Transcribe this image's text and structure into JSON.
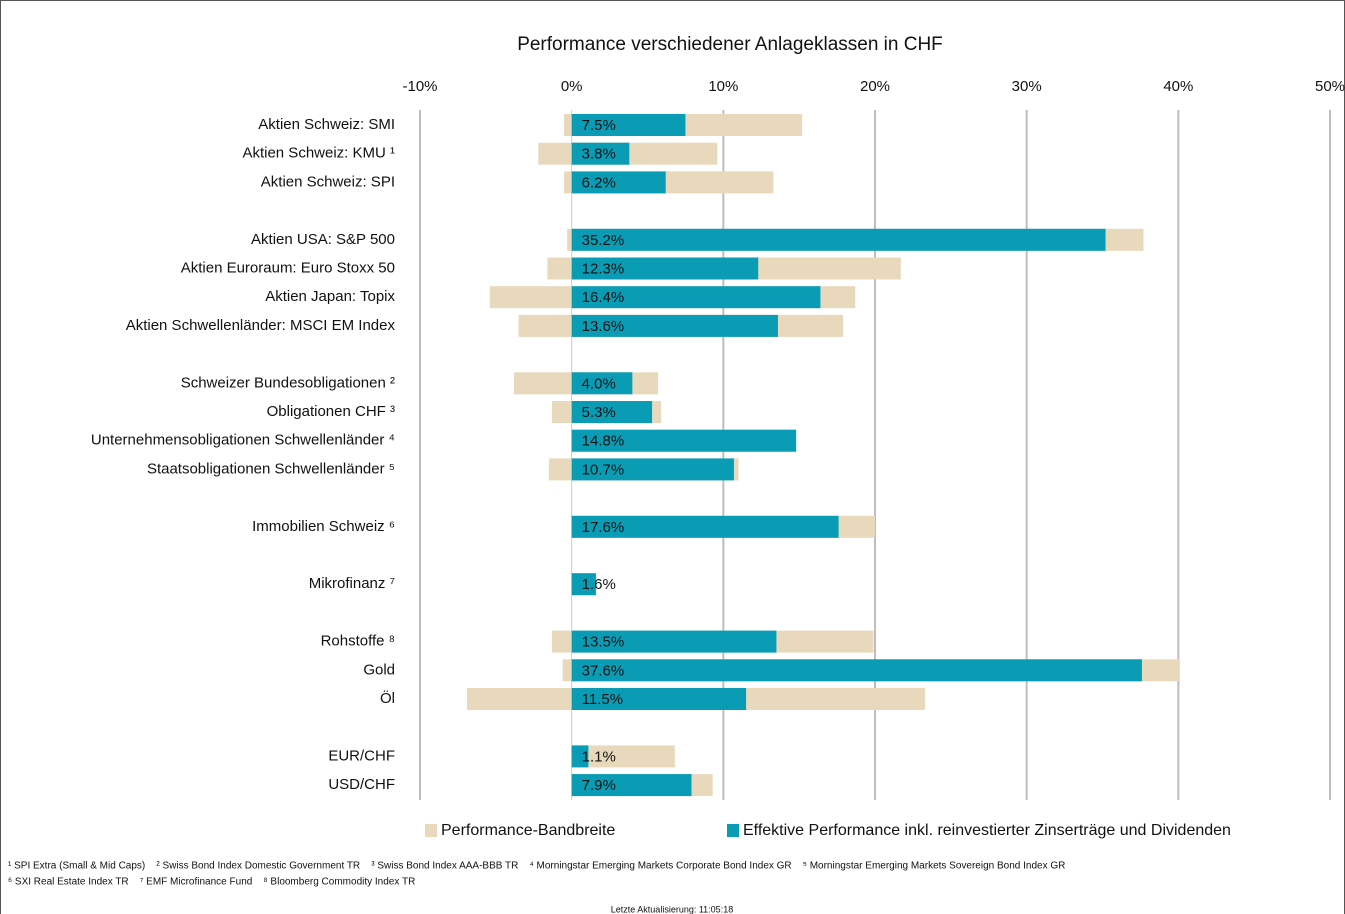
{
  "chart_data": {
    "type": "range_bar",
    "title": "Performance verschiedener Anlageklassen in CHF",
    "categories": [
      "Aktien Schweiz: SMI",
      "Aktien Schweiz: KMU ¹",
      "Aktien Schweiz: SPI",
      null,
      "Aktien USA: S&P 500",
      "Aktien Euroraum: Euro Stoxx 50",
      "Aktien Japan: Topix",
      "Aktien Schwellenländer: MSCI EM Index",
      null,
      "Schweizer Bundesobligationen ²",
      "Obligationen CHF ³",
      "Unternehmensobligationen Schwellenländer ⁴",
      "Staatsobligationen Schwellenländer ⁵",
      null,
      "Immobilien Schweiz ⁶",
      null,
      "Mikrofinanz ⁷",
      null,
      "Rohstoffe ⁸",
      "Gold",
      "Öl",
      null,
      "EUR/CHF",
      "USD/CHF"
    ],
    "series": [
      {
        "name": "Performance-Bandbreite",
        "color": "#e8d9bd",
        "values": [
          [
            -0.5,
            15.2
          ],
          [
            -2.2,
            9.6
          ],
          [
            -0.5,
            13.3
          ],
          null,
          [
            -0.3,
            37.7
          ],
          [
            -1.6,
            21.7
          ],
          [
            -5.4,
            18.7
          ],
          [
            -3.5,
            17.9
          ],
          null,
          [
            -3.8,
            5.7
          ],
          [
            -1.3,
            5.9
          ],
          [
            0,
            14.8
          ],
          [
            -1.5,
            11.0
          ],
          null,
          [
            0,
            20.0
          ],
          null,
          [
            0,
            1.6
          ],
          null,
          [
            -1.3,
            19.9
          ],
          [
            -0.6,
            40.1
          ],
          [
            -6.9,
            23.3
          ],
          null,
          [
            0,
            6.8
          ],
          [
            0,
            9.3
          ]
        ]
      },
      {
        "name": "Effektive Performance inkl. reinvestierter Zinserträge und Dividenden",
        "color": "#0a9cb4",
        "values": [
          7.5,
          3.8,
          6.2,
          null,
          35.2,
          12.3,
          16.4,
          13.6,
          null,
          4.0,
          5.3,
          14.8,
          10.7,
          null,
          17.6,
          null,
          1.6,
          null,
          13.5,
          37.6,
          11.5,
          null,
          1.1,
          7.9
        ],
        "value_labels": [
          "7.5%",
          "3.8%",
          "6.2%",
          null,
          "35.2%",
          "12.3%",
          "16.4%",
          "13.6%",
          null,
          "4.0%",
          "5.3%",
          "14.8%",
          "10.7%",
          null,
          "17.6%",
          null,
          "1.6%",
          null,
          "13.5%",
          "37.6%",
          "11.5%",
          null,
          "1.1%",
          "7.9%"
        ]
      }
    ],
    "xlim": [
      -10,
      50
    ],
    "xticks": [
      {
        "value": -10,
        "label": "-10%"
      },
      {
        "value": 0,
        "label": "0%"
      },
      {
        "value": 10,
        "label": "10%"
      },
      {
        "value": 20,
        "label": "20%"
      },
      {
        "value": 30,
        "label": "30%"
      },
      {
        "value": 40,
        "label": "40%"
      },
      {
        "value": 50,
        "label": "50%"
      }
    ],
    "grid": true,
    "footnotes": [
      "¹ SPI Extra (Small & Mid Caps)    ² Swiss Bond Index Domestic Government TR    ³ Swiss Bond Index AAA-BBB TR    ⁴ Morningstar Emerging Markets Corporate Bond Index GR    ⁵ Morningstar Emerging Markets Sovereign Bond Index GR",
      "⁶ SXI Real Estate Index TR    ⁷ EMF Microfinance Fund    ⁸ Bloomberg Commodity Index TR"
    ],
    "update_note": "Letzte Aktualisierung: 11:05:18"
  }
}
